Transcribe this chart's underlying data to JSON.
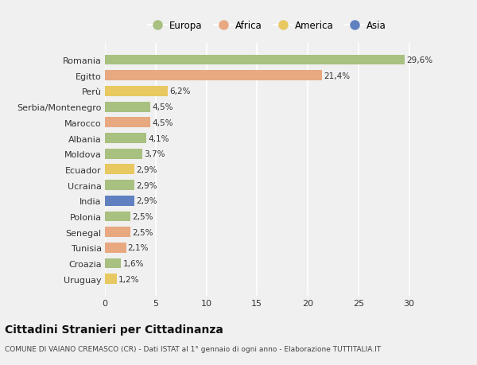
{
  "countries": [
    "Romania",
    "Egitto",
    "Perù",
    "Serbia/Montenegro",
    "Marocco",
    "Albania",
    "Moldova",
    "Ecuador",
    "Ucraina",
    "India",
    "Polonia",
    "Senegal",
    "Tunisia",
    "Croazia",
    "Uruguay"
  ],
  "values": [
    29.6,
    21.4,
    6.2,
    4.5,
    4.5,
    4.1,
    3.7,
    2.9,
    2.9,
    2.9,
    2.5,
    2.5,
    2.1,
    1.6,
    1.2
  ],
  "continents": [
    "Europa",
    "Africa",
    "America",
    "Europa",
    "Africa",
    "Europa",
    "Europa",
    "America",
    "Europa",
    "Asia",
    "Europa",
    "Africa",
    "Africa",
    "Europa",
    "America"
  ],
  "continent_colors": {
    "Europa": "#a8c080",
    "Africa": "#e8a880",
    "America": "#e8c860",
    "Asia": "#6080c0"
  },
  "labels": [
    "29,6%",
    "21,4%",
    "6,2%",
    "4,5%",
    "4,5%",
    "4,1%",
    "3,7%",
    "2,9%",
    "2,9%",
    "2,9%",
    "2,5%",
    "2,5%",
    "2,1%",
    "1,6%",
    "1,2%"
  ],
  "title": "Cittadini Stranieri per Cittadinanza",
  "subtitle": "COMUNE DI VAIANO CREMASCO (CR) - Dati ISTAT al 1° gennaio di ogni anno - Elaborazione TUTTITALIA.IT",
  "legend_order": [
    "Europa",
    "Africa",
    "America",
    "Asia"
  ],
  "xlim": [
    0,
    32
  ],
  "xticks": [
    0,
    5,
    10,
    15,
    20,
    25,
    30
  ],
  "background_color": "#f0f0f0",
  "plot_bg_color": "#f0f0f0",
  "grid_color": "#ffffff",
  "bar_height": 0.65,
  "label_fontsize": 7.5,
  "tick_fontsize": 8,
  "legend_fontsize": 8.5,
  "title_fontsize": 10,
  "subtitle_fontsize": 6.5
}
